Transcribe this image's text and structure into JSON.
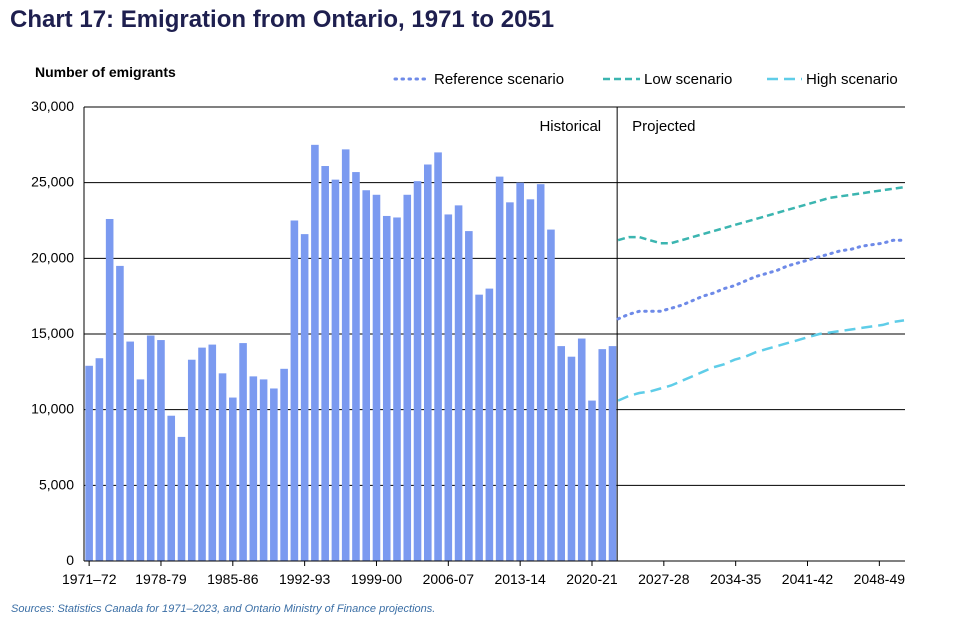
{
  "title": "Chart 17: Emigration from Ontario, 1971 to 2051",
  "source": "Sources: Statistics Canada for 1971–2023, and Ontario Ministry of Finance projections.",
  "colors": {
    "bar": "#7b9af0",
    "reference": "#6e8ae8",
    "low": "#3bb5b0",
    "high": "#5fcde8",
    "title": "#1e1f4f",
    "source": "#3a6ea5"
  },
  "chart_data": {
    "type": "bar",
    "ylabel": "Number of emigrants",
    "xlabel": "",
    "ylim": [
      0,
      30000
    ],
    "yticks": [
      0,
      5000,
      10000,
      15000,
      20000,
      25000,
      30000
    ],
    "ytick_labels": [
      "0",
      "5,000",
      "10,000",
      "15,000",
      "20,000",
      "25,000",
      "30,000"
    ],
    "grid": true,
    "legend_position": "top-right",
    "annotations": {
      "historical": "Historical",
      "projected": "Projected"
    },
    "xtick_labels": [
      "1971–72",
      "1978-79",
      "1985-86",
      "1992-93",
      "1999-00",
      "2006-07",
      "2013-14",
      "2020-21",
      "2027-28",
      "2034-35",
      "2041-42",
      "2048-49"
    ],
    "xtick_indices": [
      0,
      7,
      14,
      21,
      28,
      35,
      42,
      49,
      56,
      63,
      70,
      77
    ],
    "historical": {
      "start_year": 1971,
      "values": [
        12900,
        13400,
        22600,
        19500,
        14500,
        12000,
        14900,
        14600,
        9600,
        8200,
        13300,
        14100,
        14300,
        12400,
        10800,
        14400,
        12200,
        12000,
        11400,
        12700,
        22500,
        21600,
        27500,
        26100,
        25200,
        27200,
        25700,
        24500,
        24200,
        22800,
        22700,
        24200,
        25100,
        26200,
        27000,
        22900,
        23500,
        21800,
        17600,
        18000,
        25400,
        23700,
        25000,
        23900,
        24900,
        21900,
        14200,
        13500,
        14700,
        10600,
        14000,
        14200
      ]
    },
    "projection_start_index": 52,
    "projection_end_index": 79,
    "series": [
      {
        "name": "Reference scenario",
        "style": "dotted",
        "values": [
          16000,
          16300,
          16500,
          16500,
          16500,
          16700,
          16900,
          17200,
          17500,
          17700,
          18000,
          18200,
          18500,
          18800,
          19000,
          19200,
          19500,
          19700,
          19900,
          20100,
          20300,
          20500,
          20600,
          20800,
          20900,
          21000,
          21200,
          21200
        ]
      },
      {
        "name": "Low scenario",
        "style": "dashed",
        "values": [
          21200,
          21400,
          21400,
          21200,
          21000,
          21000,
          21200,
          21400,
          21600,
          21800,
          22000,
          22200,
          22400,
          22600,
          22800,
          23000,
          23200,
          23400,
          23600,
          23800,
          24000,
          24100,
          24200,
          24300,
          24400,
          24500,
          24600,
          24700
        ]
      },
      {
        "name": "High scenario",
        "style": "longdash",
        "values": [
          10600,
          10900,
          11100,
          11200,
          11400,
          11600,
          11900,
          12200,
          12500,
          12800,
          13000,
          13300,
          13500,
          13800,
          14000,
          14200,
          14400,
          14600,
          14800,
          15000,
          15100,
          15200,
          15300,
          15400,
          15500,
          15600,
          15800,
          15900
        ]
      }
    ]
  }
}
